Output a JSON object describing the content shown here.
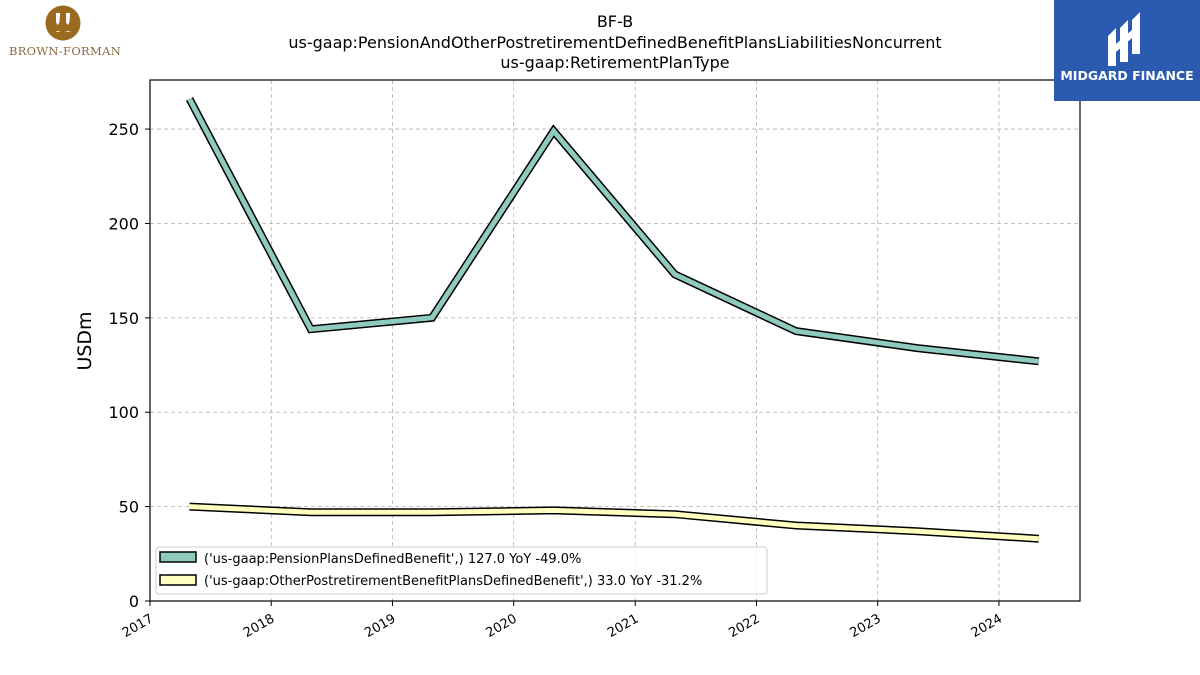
{
  "brand": {
    "left_logo_text": "BROWN-FORMAN",
    "right_logo_text": "MIDGARD FINANCE"
  },
  "colors": {
    "series_pension": "#8ecbbe",
    "series_other": "#ffffc0",
    "outline": "#000000",
    "grid": "#b0b0b0",
    "brand_blue": "#2a5bb0",
    "brand_gold": "#9a6a1f"
  },
  "chart_data": {
    "type": "line",
    "title_lines": [
      "BF-B",
      "us-gaap:PensionAndOtherPostretirementDefinedBenefitPlansLiabilitiesNoncurrent",
      "us-gaap:RetirementPlanType"
    ],
    "xlabel": "",
    "ylabel": "USDm",
    "ylim": [
      0,
      276
    ],
    "yticks": [
      0,
      50,
      100,
      150,
      200,
      250
    ],
    "xlim": [
      "2017-01-01",
      "2024-09-01"
    ],
    "xtick_labels": [
      "2017",
      "2018",
      "2019",
      "2020",
      "2021",
      "2022",
      "2023",
      "2024"
    ],
    "xtick_dates": [
      "2017-01-01",
      "2018-01-01",
      "2019-01-01",
      "2020-01-01",
      "2021-01-01",
      "2022-01-01",
      "2023-01-01",
      "2024-01-01"
    ],
    "grid": true,
    "legend_position": "lower-left",
    "series": [
      {
        "name": "('us-gaap:PensionPlansDefinedBenefit',) 127.0 YoY -49.0%",
        "x": [
          "2017-04-30",
          "2018-04-30",
          "2019-04-30",
          "2020-04-30",
          "2021-04-30",
          "2022-04-30",
          "2023-04-30",
          "2024-04-30"
        ],
        "values": [
          266,
          144,
          150,
          249,
          173,
          143,
          134,
          127
        ]
      },
      {
        "name": "('us-gaap:OtherPostretirementBenefitPlansDefinedBenefit',) 33.0 YoY -31.2%",
        "x": [
          "2017-04-30",
          "2018-04-30",
          "2019-04-30",
          "2020-04-30",
          "2021-04-30",
          "2022-04-30",
          "2023-04-30",
          "2024-04-30"
        ],
        "values": [
          50,
          47,
          47,
          48,
          46,
          40,
          37,
          33
        ]
      }
    ]
  }
}
